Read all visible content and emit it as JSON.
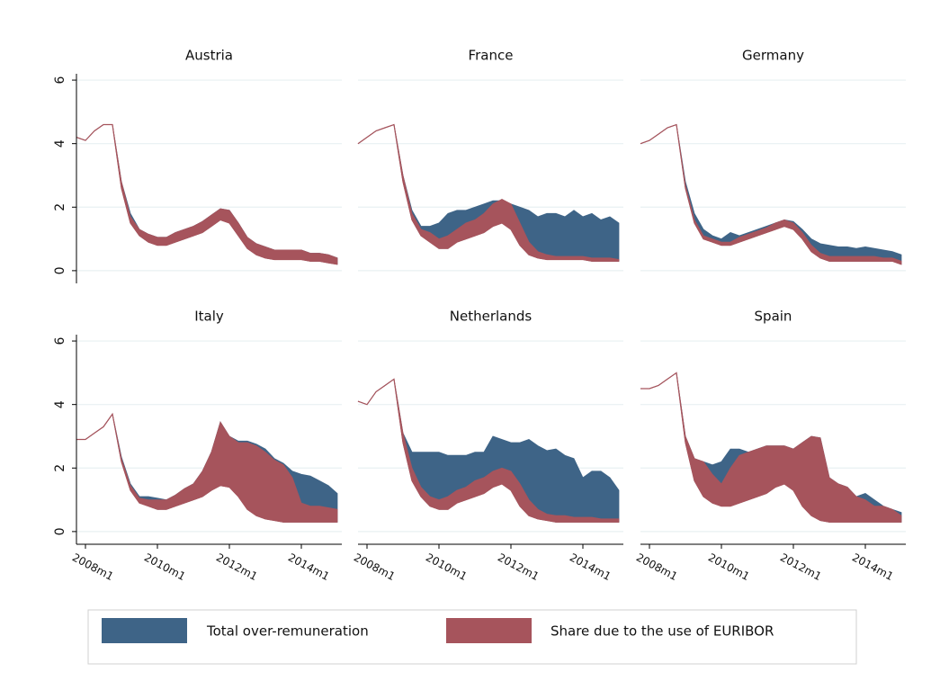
{
  "chart_data": {
    "type": "area",
    "x": [
      2007.75,
      2008.0,
      2008.25,
      2008.5,
      2008.75,
      2009.0,
      2009.25,
      2009.5,
      2009.75,
      2010.0,
      2010.25,
      2010.5,
      2010.75,
      2011.0,
      2011.25,
      2011.5,
      2011.75,
      2012.0,
      2012.25,
      2012.5,
      2012.75,
      2013.0,
      2013.25,
      2013.5,
      2013.75,
      2014.0,
      2014.25,
      2014.5,
      2014.75,
      2015.0
    ],
    "xlim": [
      2007.75,
      2015.125
    ],
    "xticks": [
      {
        "value": 2008,
        "label": "2008m1"
      },
      {
        "value": 2010,
        "label": "2010m1"
      },
      {
        "value": 2012,
        "label": "2012m1"
      },
      {
        "value": 2014,
        "label": "2014m1"
      }
    ],
    "ylim": [
      -0.4,
      6.2
    ],
    "yticks": [
      0,
      2,
      4,
      6
    ],
    "grid": true,
    "legend": "bottom",
    "series": [
      {
        "name": "Total over-remuneration",
        "color": "#3e6487"
      },
      {
        "name": "Share due to the use of EURIBOR",
        "color": "#a6545c"
      }
    ],
    "panels": [
      {
        "title": "Austria",
        "base": [
          4.2,
          4.1,
          4.4,
          4.6,
          4.6,
          2.6,
          1.5,
          1.1,
          0.9,
          0.8,
          0.8,
          0.9,
          1.0,
          1.1,
          1.2,
          1.4,
          1.6,
          1.5,
          1.1,
          0.7,
          0.5,
          0.4,
          0.35,
          0.35,
          0.35,
          0.35,
          0.3,
          0.3,
          0.25,
          0.2
        ],
        "series": [
          {
            "values": [
              0,
              0,
              0,
              0,
              0,
              0.2,
              0.3,
              0.2,
              0.25,
              0.25,
              0.25,
              0.3,
              0.3,
              0.3,
              0.35,
              0.35,
              0.35,
              0.4,
              0.4,
              0.35,
              0.35,
              0.35,
              0.3,
              0.3,
              0.3,
              0.3,
              0.25,
              0.25,
              0.25,
              0.2
            ]
          },
          {
            "values": [
              0,
              0,
              0,
              0,
              0,
              0.2,
              0.2,
              0.2,
              0.25,
              0.25,
              0.25,
              0.3,
              0.3,
              0.3,
              0.35,
              0.35,
              0.35,
              0.4,
              0.4,
              0.35,
              0.35,
              0.35,
              0.3,
              0.3,
              0.3,
              0.3,
              0.25,
              0.25,
              0.25,
              0.2
            ]
          }
        ]
      },
      {
        "title": "France",
        "base": [
          4.0,
          4.2,
          4.4,
          4.5,
          4.6,
          2.8,
          1.6,
          1.1,
          0.9,
          0.7,
          0.7,
          0.9,
          1.0,
          1.1,
          1.2,
          1.4,
          1.5,
          1.3,
          0.8,
          0.5,
          0.4,
          0.35,
          0.35,
          0.35,
          0.35,
          0.35,
          0.3,
          0.3,
          0.3,
          0.3
        ],
        "series": [
          {
            "values": [
              0,
              0,
              0,
              0,
              0,
              0.2,
              0.3,
              0.3,
              0.5,
              0.8,
              1.1,
              1.0,
              0.9,
              0.9,
              0.9,
              0.8,
              0.7,
              0.8,
              1.2,
              1.4,
              1.3,
              1.45,
              1.45,
              1.35,
              1.55,
              1.35,
              1.5,
              1.3,
              1.4,
              1.2
            ]
          },
          {
            "values": [
              0,
              0,
              0,
              0,
              0,
              0.2,
              0.2,
              0.2,
              0.3,
              0.3,
              0.4,
              0.4,
              0.5,
              0.5,
              0.6,
              0.7,
              0.75,
              0.8,
              0.7,
              0.4,
              0.2,
              0.15,
              0.1,
              0.1,
              0.1,
              0.1,
              0.1,
              0.1,
              0.1,
              0.05
            ]
          }
        ]
      },
      {
        "title": "Germany",
        "base": [
          4.0,
          4.1,
          4.3,
          4.5,
          4.6,
          2.6,
          1.5,
          1.0,
          0.9,
          0.8,
          0.8,
          0.9,
          1.0,
          1.1,
          1.2,
          1.3,
          1.4,
          1.3,
          1.0,
          0.6,
          0.4,
          0.3,
          0.3,
          0.3,
          0.3,
          0.3,
          0.3,
          0.3,
          0.3,
          0.2
        ],
        "series": [
          {
            "values": [
              0,
              0,
              0,
              0,
              0,
              0.2,
              0.3,
              0.3,
              0.2,
              0.2,
              0.4,
              0.2,
              0.2,
              0.2,
              0.2,
              0.2,
              0.2,
              0.25,
              0.3,
              0.4,
              0.45,
              0.5,
              0.45,
              0.45,
              0.4,
              0.45,
              0.4,
              0.35,
              0.3,
              0.3
            ]
          },
          {
            "values": [
              0,
              0,
              0,
              0,
              0,
              0.1,
              0.1,
              0.1,
              0.1,
              0.1,
              0.1,
              0.15,
              0.15,
              0.15,
              0.15,
              0.2,
              0.2,
              0.2,
              0.2,
              0.2,
              0.15,
              0.15,
              0.15,
              0.15,
              0.15,
              0.15,
              0.15,
              0.1,
              0.1,
              0.1
            ]
          }
        ]
      },
      {
        "title": "Italy",
        "base": [
          2.9,
          2.9,
          3.1,
          3.3,
          3.7,
          2.2,
          1.3,
          0.9,
          0.8,
          0.7,
          0.7,
          0.8,
          0.9,
          1.0,
          1.1,
          1.3,
          1.45,
          1.4,
          1.1,
          0.7,
          0.5,
          0.4,
          0.35,
          0.3,
          0.3,
          0.3,
          0.3,
          0.3,
          0.3,
          0.3
        ],
        "series": [
          {
            "values": [
              0,
              0,
              0,
              0,
              0,
              0.15,
              0.2,
              0.2,
              0.3,
              0.35,
              0.3,
              0.35,
              0.45,
              0.5,
              0.8,
              1.2,
              2.0,
              1.6,
              1.75,
              2.15,
              2.25,
              2.2,
              1.95,
              1.85,
              1.6,
              1.5,
              1.45,
              1.3,
              1.15,
              0.9
            ]
          },
          {
            "values": [
              0,
              0,
              0,
              0,
              0,
              0.1,
              0.15,
              0.15,
              0.2,
              0.3,
              0.3,
              0.35,
              0.45,
              0.5,
              0.8,
              1.2,
              2.0,
              1.6,
              1.7,
              2.1,
              2.2,
              2.1,
              1.9,
              1.8,
              1.4,
              0.6,
              0.5,
              0.5,
              0.45,
              0.4
            ]
          }
        ]
      },
      {
        "title": "Netherlands",
        "base": [
          4.1,
          4.0,
          4.4,
          4.6,
          4.8,
          2.8,
          1.6,
          1.1,
          0.8,
          0.7,
          0.7,
          0.9,
          1.0,
          1.1,
          1.2,
          1.4,
          1.5,
          1.3,
          0.8,
          0.5,
          0.4,
          0.35,
          0.3,
          0.3,
          0.3,
          0.3,
          0.3,
          0.3,
          0.3,
          0.3
        ],
        "series": [
          {
            "values": [
              0,
              0,
              0,
              0,
              0,
              0.3,
              0.9,
              1.4,
              1.7,
              1.8,
              1.7,
              1.5,
              1.4,
              1.4,
              1.3,
              1.6,
              1.4,
              1.5,
              2.0,
              2.4,
              2.3,
              2.2,
              2.3,
              2.1,
              2.0,
              1.4,
              1.6,
              1.6,
              1.4,
              1.0
            ]
          },
          {
            "values": [
              0,
              0,
              0,
              0,
              0,
              0.3,
              0.4,
              0.3,
              0.3,
              0.3,
              0.4,
              0.4,
              0.4,
              0.5,
              0.5,
              0.5,
              0.5,
              0.6,
              0.7,
              0.5,
              0.3,
              0.2,
              0.2,
              0.2,
              0.15,
              0.15,
              0.15,
              0.1,
              0.1,
              0.1
            ]
          }
        ]
      },
      {
        "title": "Spain",
        "base": [
          4.5,
          4.5,
          4.6,
          4.8,
          5.0,
          2.8,
          1.6,
          1.1,
          0.9,
          0.8,
          0.8,
          0.9,
          1.0,
          1.1,
          1.2,
          1.4,
          1.5,
          1.3,
          0.8,
          0.5,
          0.35,
          0.3,
          0.3,
          0.3,
          0.3,
          0.3,
          0.3,
          0.3,
          0.3,
          0.3
        ],
        "series": [
          {
            "values": [
              0,
              0,
              0,
              0,
              0,
              0.2,
              0.7,
              1.1,
              1.2,
              1.4,
              1.8,
              1.7,
              1.5,
              1.5,
              1.5,
              1.3,
              1.2,
              1.3,
              2.0,
              2.5,
              2.6,
              1.4,
              1.2,
              1.1,
              0.8,
              0.9,
              0.7,
              0.5,
              0.4,
              0.3
            ]
          },
          {
            "values": [
              0,
              0,
              0,
              0,
              0,
              0.2,
              0.7,
              1.1,
              0.9,
              0.7,
              1.2,
              1.5,
              1.5,
              1.5,
              1.5,
              1.3,
              1.2,
              1.3,
              2.0,
              2.5,
              2.6,
              1.4,
              1.2,
              1.1,
              0.8,
              0.7,
              0.5,
              0.5,
              0.4,
              0.2
            ]
          }
        ]
      }
    ]
  }
}
